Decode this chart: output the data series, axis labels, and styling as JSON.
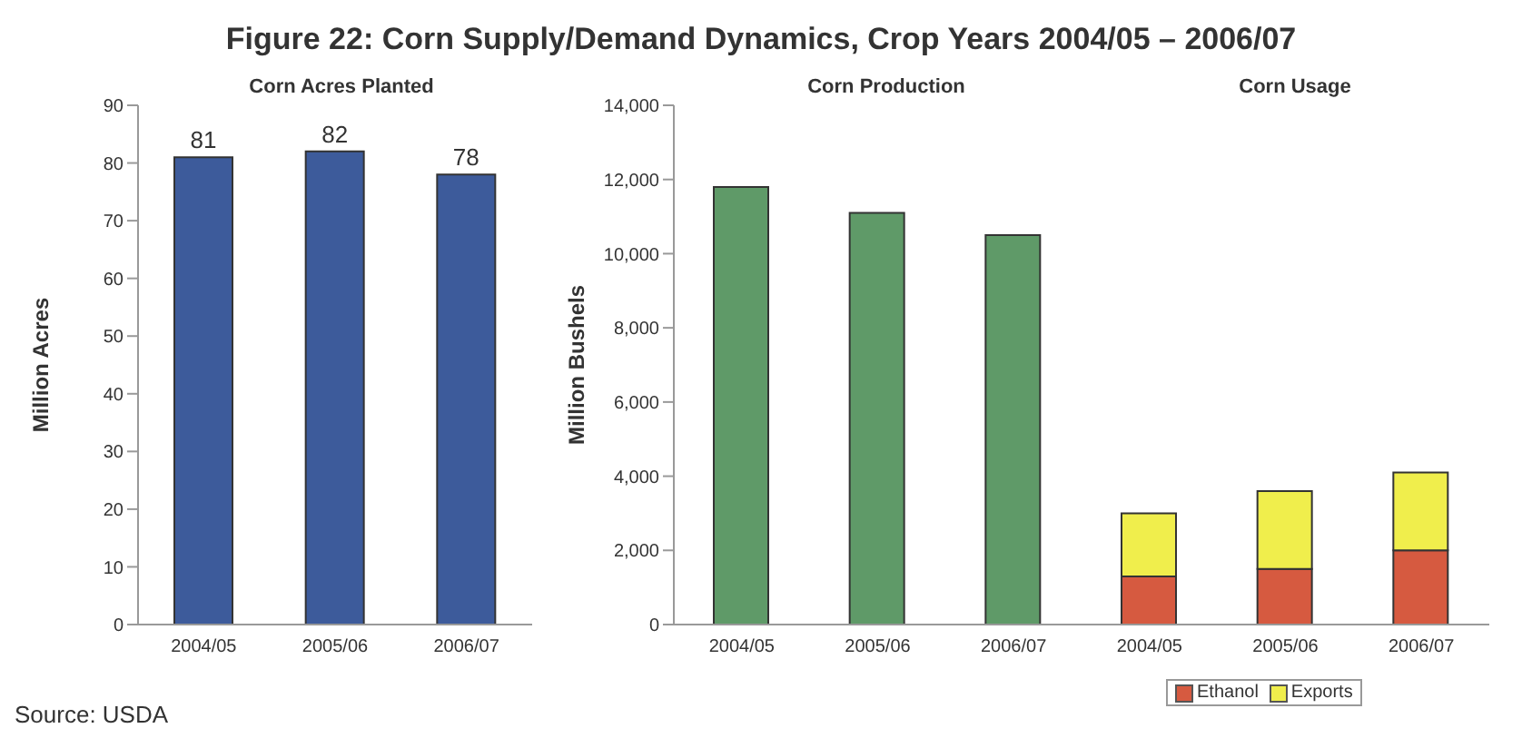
{
  "chart_data": [
    {
      "type": "bar",
      "title": "Figure 22: Corn Supply/Demand Dynamics, Crop Years 2004/05 – 2006/07",
      "ylabel": "Million Acres",
      "categories": [
        "2004/05",
        "2005/06",
        "2006/07"
      ],
      "values": [
        81,
        82,
        78
      ],
      "color": "#3d5b9b",
      "ylim": [
        0,
        90
      ],
      "yticks": [
        0,
        10,
        20,
        30,
        40,
        50,
        60,
        70,
        80,
        90
      ],
      "data_labels": true,
      "annotations": [
        "Corn Acres Planted",
        "Source: USDA"
      ]
    },
    {
      "type": "bar",
      "ylabel": "Million Bushels",
      "categories": [
        "2004/05",
        "2005/06",
        "2006/07",
        "2004/05",
        "2005/06",
        "2006/07"
      ],
      "stacked": true,
      "series": [
        {
          "color": "#5f9a68",
          "values": [
            11800,
            11100,
            10500,
            null,
            null,
            null
          ]
        },
        {
          "name": "Ethanol",
          "color": "#d65a40",
          "values": [
            null,
            null,
            null,
            1300,
            1500,
            2000
          ]
        },
        {
          "name": "Exports",
          "color": "#f0ee4c",
          "values": [
            null,
            null,
            null,
            1700,
            2100,
            2100
          ]
        }
      ],
      "ylim": [
        0,
        14000
      ],
      "yticks": [
        0,
        {
          "value": 2000,
          "label": "2,000"
        },
        {
          "value": 4000,
          "label": "4,000"
        },
        {
          "value": 6000,
          "label": "6,000"
        },
        {
          "value": 8000,
          "label": "8,000"
        },
        {
          "value": 10000,
          "label": "10,000"
        },
        {
          "value": 12000,
          "label": "12,000"
        },
        {
          "value": 14000,
          "label": "14,000"
        }
      ],
      "legend": "bottom",
      "annotations": [
        "Corn Production",
        "Corn Usage"
      ]
    }
  ]
}
